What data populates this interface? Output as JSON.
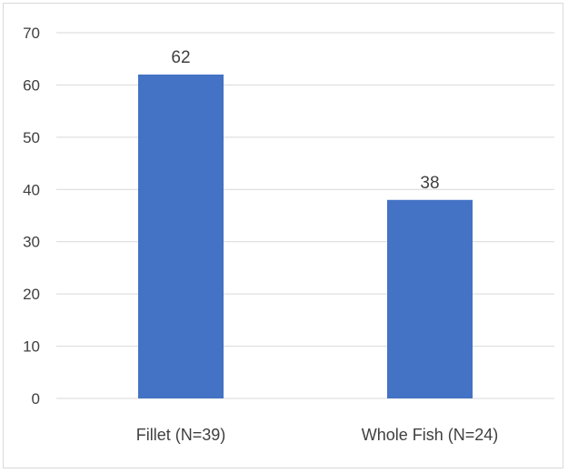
{
  "chart_data": {
    "type": "bar",
    "categories": [
      "Fillet (N=39)",
      "Whole Fish (N=24)"
    ],
    "values": [
      62,
      38
    ],
    "data_labels": [
      "62",
      "38"
    ],
    "title": "",
    "xlabel": "",
    "ylabel": "",
    "ylim": [
      0,
      70
    ],
    "yticks": [
      "0",
      "10",
      "20",
      "30",
      "40",
      "50",
      "60",
      "70"
    ],
    "grid": true,
    "legend": "none",
    "bar_color": "#4472c4",
    "grid_color": "#d9d9d9"
  }
}
